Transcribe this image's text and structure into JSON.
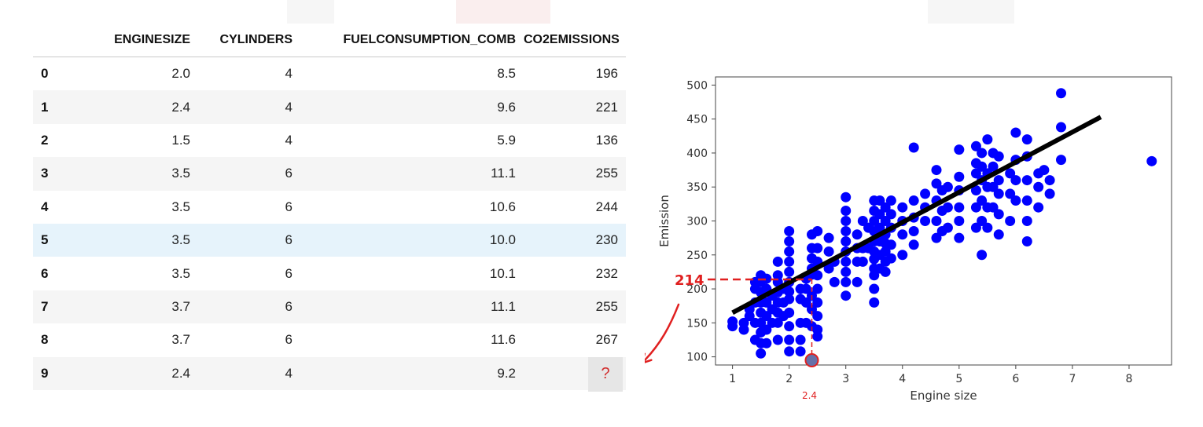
{
  "table": {
    "columns": [
      "",
      "ENGINESIZE",
      "CYLINDERS",
      "FUELCONSUMPTION_COMB",
      "CO2EMISSIONS"
    ],
    "rows": [
      {
        "idx": "0",
        "enginesize": "2.0",
        "cylinders": "4",
        "fuel": "8.5",
        "co2": "196"
      },
      {
        "idx": "1",
        "enginesize": "2.4",
        "cylinders": "4",
        "fuel": "9.6",
        "co2": "221"
      },
      {
        "idx": "2",
        "enginesize": "1.5",
        "cylinders": "4",
        "fuel": "5.9",
        "co2": "136"
      },
      {
        "idx": "3",
        "enginesize": "3.5",
        "cylinders": "6",
        "fuel": "11.1",
        "co2": "255"
      },
      {
        "idx": "4",
        "enginesize": "3.5",
        "cylinders": "6",
        "fuel": "10.6",
        "co2": "244"
      },
      {
        "idx": "5",
        "enginesize": "3.5",
        "cylinders": "6",
        "fuel": "10.0",
        "co2": "230"
      },
      {
        "idx": "6",
        "enginesize": "3.5",
        "cylinders": "6",
        "fuel": "10.1",
        "co2": "232"
      },
      {
        "idx": "7",
        "enginesize": "3.7",
        "cylinders": "6",
        "fuel": "11.1",
        "co2": "255"
      },
      {
        "idx": "8",
        "enginesize": "3.7",
        "cylinders": "6",
        "fuel": "11.6",
        "co2": "267"
      },
      {
        "idx": "9",
        "enginesize": "2.4",
        "cylinders": "4",
        "fuel": "9.2",
        "co2": "?"
      }
    ],
    "highlight_row": 5,
    "unknown_color": "#d23030"
  },
  "chart_data": {
    "type": "scatter",
    "xlabel": "Engine size",
    "ylabel": "Emission",
    "xlim": [
      0.7,
      8.75
    ],
    "ylim": [
      88,
      512
    ],
    "xticks": [
      1,
      2,
      3,
      4,
      5,
      6,
      7,
      8
    ],
    "yticks": [
      100,
      150,
      200,
      250,
      300,
      350,
      400,
      450,
      500
    ],
    "point_color": "#0000ff",
    "line_color": "#000000",
    "annotation_color": "#e02020",
    "regression_line": {
      "x": [
        1.0,
        7.5
      ],
      "y": [
        165,
        453
      ]
    },
    "prediction": {
      "x": 2.4,
      "y": 214,
      "x_label": "2.4",
      "y_label": "214"
    },
    "points": [
      [
        1.0,
        145
      ],
      [
        1.0,
        152
      ],
      [
        1.2,
        140
      ],
      [
        1.2,
        150
      ],
      [
        1.3,
        160
      ],
      [
        1.3,
        170
      ],
      [
        1.4,
        150
      ],
      [
        1.4,
        180
      ],
      [
        1.4,
        200
      ],
      [
        1.4,
        210
      ],
      [
        1.4,
        125
      ],
      [
        1.5,
        105
      ],
      [
        1.5,
        120
      ],
      [
        1.5,
        136
      ],
      [
        1.5,
        150
      ],
      [
        1.5,
        165
      ],
      [
        1.5,
        180
      ],
      [
        1.5,
        195
      ],
      [
        1.5,
        210
      ],
      [
        1.5,
        220
      ],
      [
        1.6,
        120
      ],
      [
        1.6,
        140
      ],
      [
        1.6,
        160
      ],
      [
        1.6,
        180
      ],
      [
        1.6,
        200
      ],
      [
        1.6,
        215
      ],
      [
        1.7,
        150
      ],
      [
        1.7,
        170
      ],
      [
        1.7,
        190
      ],
      [
        1.8,
        125
      ],
      [
        1.8,
        150
      ],
      [
        1.8,
        165
      ],
      [
        1.8,
        180
      ],
      [
        1.8,
        195
      ],
      [
        1.8,
        210
      ],
      [
        1.8,
        220
      ],
      [
        1.8,
        240
      ],
      [
        1.9,
        160
      ],
      [
        1.9,
        180
      ],
      [
        1.9,
        200
      ],
      [
        2.0,
        108
      ],
      [
        2.0,
        125
      ],
      [
        2.0,
        145
      ],
      [
        2.0,
        165
      ],
      [
        2.0,
        185
      ],
      [
        2.0,
        196
      ],
      [
        2.0,
        210
      ],
      [
        2.0,
        225
      ],
      [
        2.0,
        240
      ],
      [
        2.0,
        255
      ],
      [
        2.0,
        270
      ],
      [
        2.0,
        285
      ],
      [
        2.2,
        108
      ],
      [
        2.2,
        125
      ],
      [
        2.2,
        150
      ],
      [
        2.2,
        185
      ],
      [
        2.2,
        200
      ],
      [
        2.3,
        150
      ],
      [
        2.3,
        180
      ],
      [
        2.3,
        200
      ],
      [
        2.3,
        215
      ],
      [
        2.4,
        145
      ],
      [
        2.4,
        170
      ],
      [
        2.4,
        190
      ],
      [
        2.4,
        221
      ],
      [
        2.4,
        230
      ],
      [
        2.4,
        245
      ],
      [
        2.4,
        260
      ],
      [
        2.4,
        280
      ],
      [
        2.5,
        130
      ],
      [
        2.5,
        140
      ],
      [
        2.5,
        160
      ],
      [
        2.5,
        180
      ],
      [
        2.5,
        200
      ],
      [
        2.5,
        220
      ],
      [
        2.5,
        240
      ],
      [
        2.5,
        260
      ],
      [
        2.5,
        285
      ],
      [
        2.7,
        230
      ],
      [
        2.7,
        255
      ],
      [
        2.7,
        275
      ],
      [
        2.8,
        210
      ],
      [
        2.8,
        240
      ],
      [
        3.0,
        190
      ],
      [
        3.0,
        210
      ],
      [
        3.0,
        225
      ],
      [
        3.0,
        240
      ],
      [
        3.0,
        255
      ],
      [
        3.0,
        270
      ],
      [
        3.0,
        285
      ],
      [
        3.0,
        300
      ],
      [
        3.0,
        315
      ],
      [
        3.0,
        335
      ],
      [
        3.2,
        210
      ],
      [
        3.2,
        240
      ],
      [
        3.2,
        260
      ],
      [
        3.2,
        280
      ],
      [
        3.3,
        240
      ],
      [
        3.3,
        260
      ],
      [
        3.3,
        300
      ],
      [
        3.4,
        260
      ],
      [
        3.4,
        290
      ],
      [
        3.5,
        180
      ],
      [
        3.5,
        200
      ],
      [
        3.5,
        220
      ],
      [
        3.5,
        230
      ],
      [
        3.5,
        244
      ],
      [
        3.5,
        255
      ],
      [
        3.5,
        270
      ],
      [
        3.5,
        285
      ],
      [
        3.5,
        300
      ],
      [
        3.5,
        315
      ],
      [
        3.5,
        330
      ],
      [
        3.6,
        230
      ],
      [
        3.6,
        250
      ],
      [
        3.6,
        270
      ],
      [
        3.6,
        290
      ],
      [
        3.6,
        310
      ],
      [
        3.6,
        330
      ],
      [
        3.7,
        225
      ],
      [
        3.7,
        240
      ],
      [
        3.7,
        255
      ],
      [
        3.7,
        267
      ],
      [
        3.7,
        280
      ],
      [
        3.7,
        300
      ],
      [
        3.7,
        320
      ],
      [
        3.8,
        245
      ],
      [
        3.8,
        265
      ],
      [
        3.8,
        290
      ],
      [
        3.8,
        310
      ],
      [
        3.8,
        330
      ],
      [
        4.0,
        250
      ],
      [
        4.0,
        280
      ],
      [
        4.0,
        300
      ],
      [
        4.0,
        320
      ],
      [
        4.2,
        265
      ],
      [
        4.2,
        285
      ],
      [
        4.2,
        305
      ],
      [
        4.2,
        330
      ],
      [
        4.2,
        408
      ],
      [
        4.4,
        300
      ],
      [
        4.4,
        320
      ],
      [
        4.4,
        340
      ],
      [
        4.6,
        275
      ],
      [
        4.6,
        300
      ],
      [
        4.6,
        330
      ],
      [
        4.6,
        355
      ],
      [
        4.6,
        375
      ],
      [
        4.7,
        285
      ],
      [
        4.7,
        315
      ],
      [
        4.7,
        345
      ],
      [
        4.8,
        290
      ],
      [
        4.8,
        320
      ],
      [
        4.8,
        350
      ],
      [
        5.0,
        275
      ],
      [
        5.0,
        300
      ],
      [
        5.0,
        320
      ],
      [
        5.0,
        345
      ],
      [
        5.0,
        365
      ],
      [
        5.0,
        405
      ],
      [
        5.3,
        290
      ],
      [
        5.3,
        320
      ],
      [
        5.3,
        345
      ],
      [
        5.3,
        370
      ],
      [
        5.3,
        385
      ],
      [
        5.3,
        410
      ],
      [
        5.4,
        250
      ],
      [
        5.4,
        300
      ],
      [
        5.4,
        330
      ],
      [
        5.4,
        360
      ],
      [
        5.4,
        380
      ],
      [
        5.4,
        400
      ],
      [
        5.5,
        290
      ],
      [
        5.5,
        320
      ],
      [
        5.5,
        350
      ],
      [
        5.5,
        370
      ],
      [
        5.5,
        420
      ],
      [
        5.6,
        320
      ],
      [
        5.6,
        350
      ],
      [
        5.6,
        380
      ],
      [
        5.6,
        400
      ],
      [
        5.7,
        280
      ],
      [
        5.7,
        310
      ],
      [
        5.7,
        340
      ],
      [
        5.7,
        360
      ],
      [
        5.7,
        395
      ],
      [
        5.9,
        300
      ],
      [
        5.9,
        340
      ],
      [
        5.9,
        370
      ],
      [
        6.0,
        330
      ],
      [
        6.0,
        360
      ],
      [
        6.0,
        390
      ],
      [
        6.0,
        430
      ],
      [
        6.2,
        270
      ],
      [
        6.2,
        300
      ],
      [
        6.2,
        330
      ],
      [
        6.2,
        360
      ],
      [
        6.2,
        395
      ],
      [
        6.2,
        420
      ],
      [
        6.4,
        320
      ],
      [
        6.4,
        350
      ],
      [
        6.4,
        370
      ],
      [
        6.5,
        375
      ],
      [
        6.6,
        340
      ],
      [
        6.6,
        360
      ],
      [
        6.8,
        390
      ],
      [
        6.8,
        438
      ],
      [
        6.8,
        488
      ],
      [
        8.4,
        388
      ]
    ]
  }
}
